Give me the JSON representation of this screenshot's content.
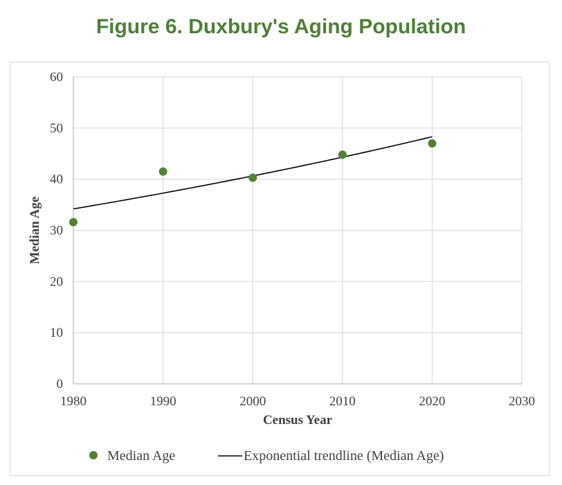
{
  "title": "Figure 6. Duxbury's Aging Population",
  "chart_data": {
    "type": "scatter",
    "xlabel": "Census Year",
    "ylabel": "Median Age",
    "xlim": [
      1980,
      2030
    ],
    "ylim": [
      0,
      60
    ],
    "xticks": [
      1980,
      1990,
      2000,
      2010,
      2020,
      2030
    ],
    "yticks": [
      0,
      10,
      20,
      30,
      40,
      50,
      60
    ],
    "grid": true,
    "legend_position": "bottom",
    "series": [
      {
        "name": "Median Age",
        "kind": "scatter",
        "color": "#548235",
        "x": [
          1980,
          1990,
          2000,
          2010,
          2020
        ],
        "y": [
          31.6,
          41.5,
          40.3,
          44.8,
          47.0
        ]
      },
      {
        "name": "Exponential trendline (Median Age)",
        "kind": "line",
        "color": "#000000",
        "x": [
          1980,
          2020
        ],
        "y": [
          34.2,
          48.3
        ]
      }
    ]
  }
}
